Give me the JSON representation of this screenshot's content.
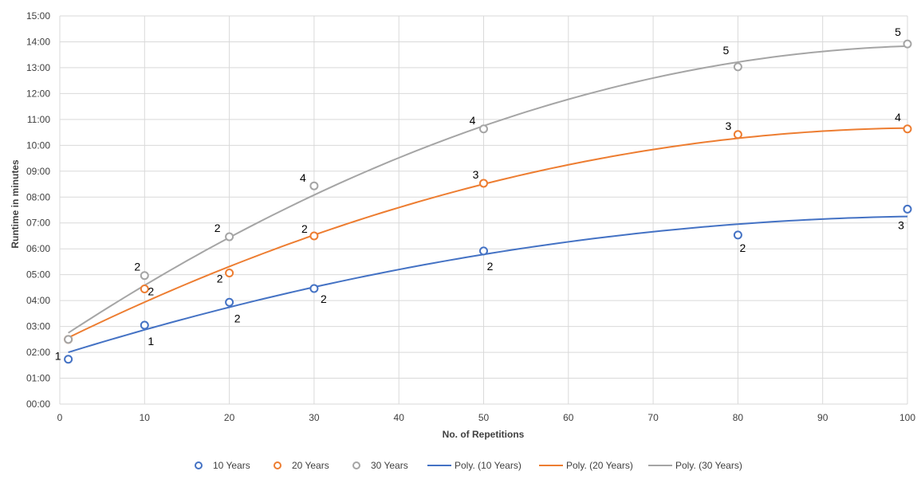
{
  "chart_data": {
    "type": "scatter",
    "xlabel": "No. of Repetitions",
    "ylabel": "Runtime in minutes",
    "xlim": [
      0,
      100
    ],
    "ylim_seconds": [
      0,
      900
    ],
    "x_ticks": [
      "0",
      "10",
      "20",
      "30",
      "40",
      "50",
      "60",
      "70",
      "80",
      "90",
      "100"
    ],
    "y_ticks": [
      "00:00",
      "01:00",
      "02:00",
      "03:00",
      "04:00",
      "05:00",
      "06:00",
      "07:00",
      "08:00",
      "09:00",
      "10:00",
      "11:00",
      "12:00",
      "13:00",
      "14:00",
      "15:00"
    ],
    "grid": true,
    "legend_position": "bottom",
    "series": [
      {
        "name": "10 Years",
        "color": "#4472C4",
        "x": [
          1,
          10,
          20,
          30,
          50,
          80,
          100
        ],
        "y": [
          "01:44",
          "03:03",
          "03:56",
          "04:28",
          "05:55",
          "06:32",
          "07:32"
        ],
        "point_labels": [
          "1",
          "1",
          "2",
          "2",
          "2",
          "2",
          "3"
        ]
      },
      {
        "name": "20 Years",
        "color": "#ED7D31",
        "x": [
          1,
          10,
          20,
          30,
          50,
          80,
          100
        ],
        "y": [
          "02:30",
          "04:27",
          "05:04",
          "06:30",
          "08:32",
          "10:25",
          "10:38"
        ],
        "point_labels": [
          "",
          "2",
          "2",
          "2",
          "3",
          "3",
          "4"
        ]
      },
      {
        "name": "30 Years",
        "color": "#A5A5A5",
        "x": [
          1,
          10,
          20,
          30,
          50,
          80,
          100
        ],
        "y": [
          "02:30",
          "04:58",
          "06:28",
          "08:26",
          "10:38",
          "13:02",
          "13:55"
        ],
        "point_labels": [
          "",
          "2",
          "2",
          "4",
          "4",
          "5",
          "5"
        ]
      }
    ],
    "trendlines": [
      {
        "name": "Poly. (10 Years)",
        "color": "#4472C4",
        "start": "02:00",
        "mid": "05:47",
        "end": "07:15"
      },
      {
        "name": "Poly. (20 Years)",
        "color": "#ED7D31",
        "start": "02:34",
        "mid": "08:30",
        "end": "10:40"
      },
      {
        "name": "Poly. (30 Years)",
        "color": "#A5A5A5",
        "start": "02:45",
        "mid": "10:45",
        "end": "13:50"
      }
    ]
  }
}
